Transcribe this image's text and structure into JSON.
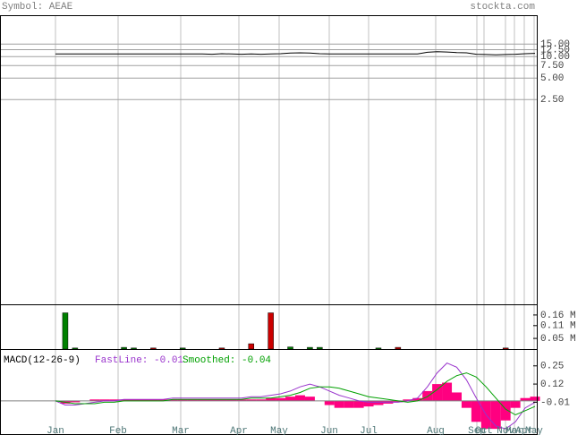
{
  "header": {
    "symbol": "Symbol: AEAE",
    "site": "stockta.com"
  },
  "months": [
    "Jan",
    "Feb",
    "Mar",
    "Apr",
    "May",
    "Jun",
    "Jul",
    "Aug",
    "Sep",
    "Oct",
    "Nov",
    "Mar",
    "Apr",
    "May"
  ],
  "chart_data": [
    {
      "type": "line",
      "log_scale": true,
      "grid": true,
      "color": "#000000",
      "values": [
        10.9,
        10.9,
        10.9,
        10.9,
        10.9,
        10.9,
        10.9,
        10.9,
        10.9,
        10.9,
        10.9,
        10.9,
        10.9,
        10.9,
        10.9,
        10.9,
        10.8,
        11,
        10.9,
        10.8,
        10.9,
        10.8,
        10.9,
        11,
        11.2,
        11.3,
        11.2,
        11,
        10.9,
        10.9,
        10.9,
        10.9,
        10.9,
        10.9,
        10.9,
        10.9,
        10.9,
        10.9,
        11.5,
        11.7,
        11.6,
        11.4,
        11.3,
        10.8,
        10.7,
        10.6,
        10.7,
        10.8,
        11,
        11.1
      ],
      "ylim": [
        0.0034,
        38
      ],
      "yticks": [
        {
          "value": 15,
          "label": "15.00"
        },
        {
          "value": 12.5,
          "label": "12.50"
        },
        {
          "value": 10,
          "label": "10.00"
        },
        {
          "value": 7.5,
          "label": "7.50"
        },
        {
          "value": 5,
          "label": "5.00"
        },
        {
          "value": 2.5,
          "label": "2.50"
        }
      ]
    },
    {
      "type": "bar",
      "x": [
        1,
        2,
        7,
        8,
        10,
        13,
        17,
        20,
        22,
        24,
        26,
        27,
        33,
        35,
        46
      ],
      "values": [
        0.17,
        0.005,
        0.008,
        0.005,
        0.005,
        0.005,
        0.005,
        0.025,
        0.17,
        0.01,
        0.008,
        0.008,
        0.005,
        0.008,
        0.005
      ],
      "colors": [
        "#008000",
        "#008000",
        "#008000",
        "#008000",
        "#cc0000",
        "#008000",
        "#cc0000",
        "#cc0000",
        "#cc0000",
        "#008000",
        "#008000",
        "#008000",
        "#008000",
        "#cc0000",
        "#cc0000"
      ],
      "ylim": [
        0,
        0.21
      ],
      "yticks": [
        {
          "value": 0.16,
          "label": "0.16 M"
        },
        {
          "value": 0.11,
          "label": "0.11 M"
        },
        {
          "value": 0.05,
          "label": "0.05 M"
        }
      ]
    },
    {
      "type": "macd",
      "title": "MACD(12-26-9)",
      "series": [
        {
          "name": "FastLine: -0.01",
          "color": "#9933cc",
          "values": [
            0,
            -0.03,
            -0.03,
            -0.02,
            -0.01,
            0,
            0,
            0.01,
            0.01,
            0.01,
            0.01,
            0.01,
            0.02,
            0.02,
            0.02,
            0.02,
            0.02,
            0.02,
            0.02,
            0.02,
            0.03,
            0.03,
            0.04,
            0.05,
            0.07,
            0.1,
            0.12,
            0.1,
            0.07,
            0.04,
            0.02,
            0,
            -0.01,
            -0.01,
            -0.01,
            -0.01,
            0,
            0.02,
            0.1,
            0.2,
            0.27,
            0.24,
            0.15,
            0.02,
            -0.1,
            -0.18,
            -0.2,
            -0.15,
            -0.05,
            -0.01
          ]
        },
        {
          "name": "Smoothed: -0.04",
          "color": "#00a000",
          "values": [
            0,
            -0.01,
            -0.02,
            -0.02,
            -0.02,
            -0.01,
            -0.01,
            0,
            0,
            0,
            0,
            0,
            0.01,
            0.01,
            0.01,
            0.01,
            0.01,
            0.01,
            0.01,
            0.01,
            0.02,
            0.02,
            0.02,
            0.03,
            0.04,
            0.06,
            0.09,
            0.1,
            0.1,
            0.09,
            0.07,
            0.05,
            0.03,
            0.02,
            0.01,
            0,
            -0.01,
            0,
            0.03,
            0.08,
            0.14,
            0.18,
            0.2,
            0.17,
            0.1,
            0.02,
            -0.06,
            -0.1,
            -0.07,
            -0.04
          ]
        }
      ],
      "histogram": {
        "color": "#ff0080",
        "values": [
          0,
          -0.02,
          -0.01,
          0,
          0.01,
          0.01,
          0.01,
          0.01,
          0.01,
          0.01,
          0.01,
          0.01,
          0.01,
          0.01,
          0.01,
          0.01,
          0.01,
          0.01,
          0.01,
          0.01,
          0.01,
          0.01,
          0.02,
          0.02,
          0.03,
          0.04,
          0.03,
          0,
          -0.03,
          -0.05,
          -0.05,
          -0.05,
          -0.04,
          -0.03,
          -0.02,
          -0.01,
          0.01,
          0.02,
          0.07,
          0.12,
          0.13,
          0.06,
          -0.05,
          -0.15,
          -0.2,
          -0.2,
          -0.14,
          -0.05,
          0.02,
          0.03
        ]
      },
      "ylim": [
        -0.244,
        0.37
      ],
      "yticks": [
        0.25,
        0.12,
        -0.01
      ]
    }
  ]
}
